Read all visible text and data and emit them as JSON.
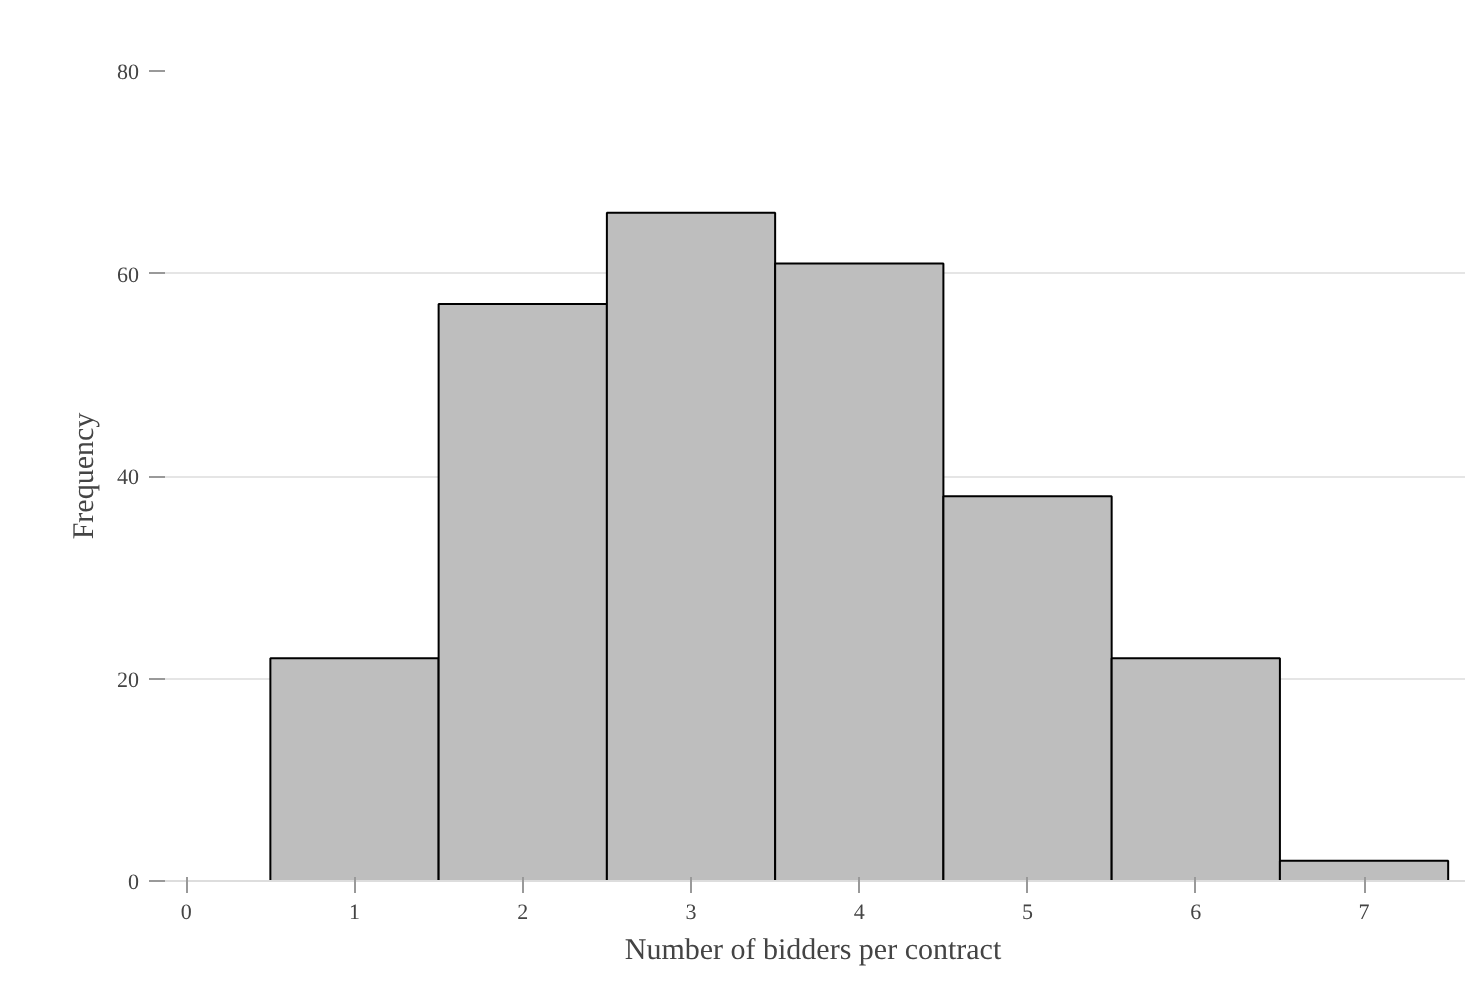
{
  "chart_data": {
    "type": "histogram",
    "xlabel": "Number of bidders per contract",
    "ylabel": "Frequency",
    "bins": [
      0.5,
      1.5,
      2.5,
      3.5,
      4.5,
      5.5,
      6.5,
      7.5
    ],
    "values": [
      22,
      57,
      66,
      61,
      38,
      22,
      2
    ],
    "color": "#bebebe",
    "xlim": [
      -0.15,
      7.6
    ],
    "xticks": [
      0,
      1,
      2,
      3,
      4,
      5,
      6,
      7
    ],
    "ylim": [
      0,
      80
    ],
    "yticks": [
      0,
      20,
      40,
      60,
      80
    ],
    "grid": "y"
  }
}
